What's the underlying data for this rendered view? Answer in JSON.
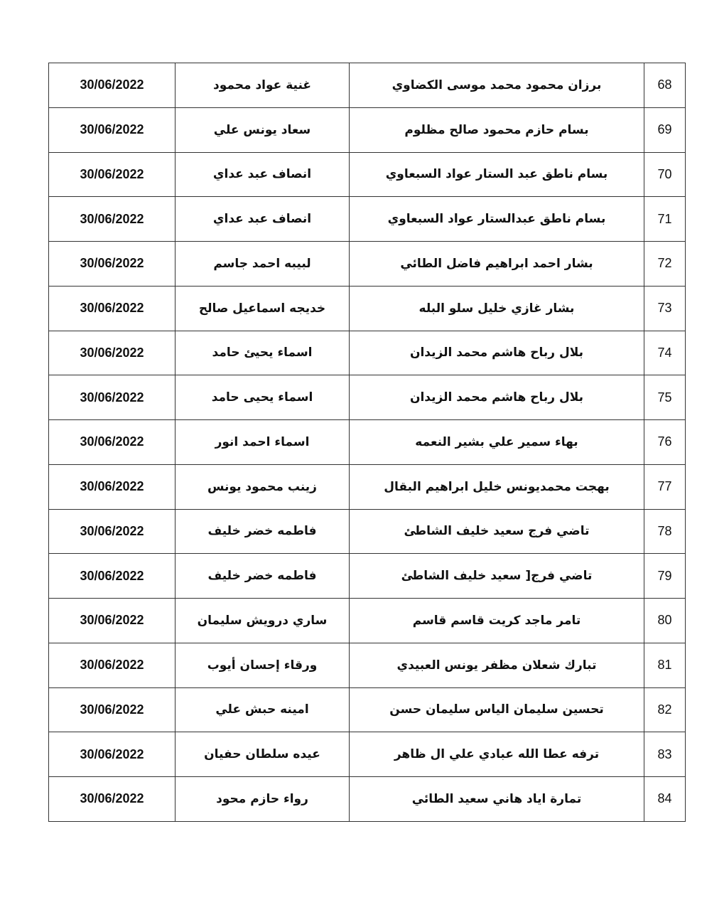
{
  "rows": [
    {
      "num": "68",
      "name": "برزان محمود محمد موسى الكضاوي",
      "mother": "غنية عواد محمود",
      "date": "30/06/2022"
    },
    {
      "num": "69",
      "name": "بسام حازم محمود صالح مظلوم",
      "mother": "سعاد يونس علي",
      "date": "30/06/2022"
    },
    {
      "num": "70",
      "name": "بسام ناطق عبد الستار عواد السبعاوي",
      "mother": "انصاف عبد عداي",
      "date": "30/06/2022"
    },
    {
      "num": "71",
      "name": "بسام ناطق عبدالستار عواد السبعاوي",
      "mother": "انصاف عبد عداي",
      "date": "30/06/2022"
    },
    {
      "num": "72",
      "name": "بشار احمد ابراهيم فاضل الطائي",
      "mother": "لبيبه احمد جاسم",
      "date": "30/06/2022"
    },
    {
      "num": "73",
      "name": "بشار غازي خليل سلو البله",
      "mother": "خديجه اسماعيل صالح",
      "date": "30/06/2022"
    },
    {
      "num": "74",
      "name": "بلال رباح هاشم محمد الزيدان",
      "mother": "اسماء يحيئ حامد",
      "date": "30/06/2022"
    },
    {
      "num": "75",
      "name": "بلال رباح هاشم محمد الزيدان",
      "mother": "اسماء يحيى حامد",
      "date": "30/06/2022"
    },
    {
      "num": "76",
      "name": "بهاء سمير علي بشير النعمه",
      "mother": "اسماء احمد انور",
      "date": "30/06/2022"
    },
    {
      "num": "77",
      "name": "بهجت محمديونس خليل ابراهيم البقال",
      "mother": "زينب محمود يونس",
      "date": "30/06/2022"
    },
    {
      "num": "78",
      "name": "تاضي فرج سعيد خليف الشاطئ",
      "mother": "فاطمه خضر خليف",
      "date": "30/06/2022"
    },
    {
      "num": "79",
      "name": "تاضي فرج[ سعيد خليف الشاطئ",
      "mother": "فاطمه خضر خليف",
      "date": "30/06/2022"
    },
    {
      "num": "80",
      "name": "تامر ماجد كريت قاسم قاسم",
      "mother": "ساري درويش سليمان",
      "date": "30/06/2022"
    },
    {
      "num": "81",
      "name": "تبارك شعلان مظفر يونس العبيدي",
      "mother": "ورقاء إحسان أيوب",
      "date": "30/06/2022"
    },
    {
      "num": "82",
      "name": "تحسين سليمان الياس سليمان حسن",
      "mother": "امينه حبش علي",
      "date": "30/06/2022"
    },
    {
      "num": "83",
      "name": "ترفه عطا الله عبادي علي ال ظاهر",
      "mother": "عيده سلطان حفيان",
      "date": "30/06/2022"
    },
    {
      "num": "84",
      "name": "تمارة اياد هاني سعيد الطائي",
      "mother": "رواء حازم محود",
      "date": "30/06/2022"
    }
  ]
}
